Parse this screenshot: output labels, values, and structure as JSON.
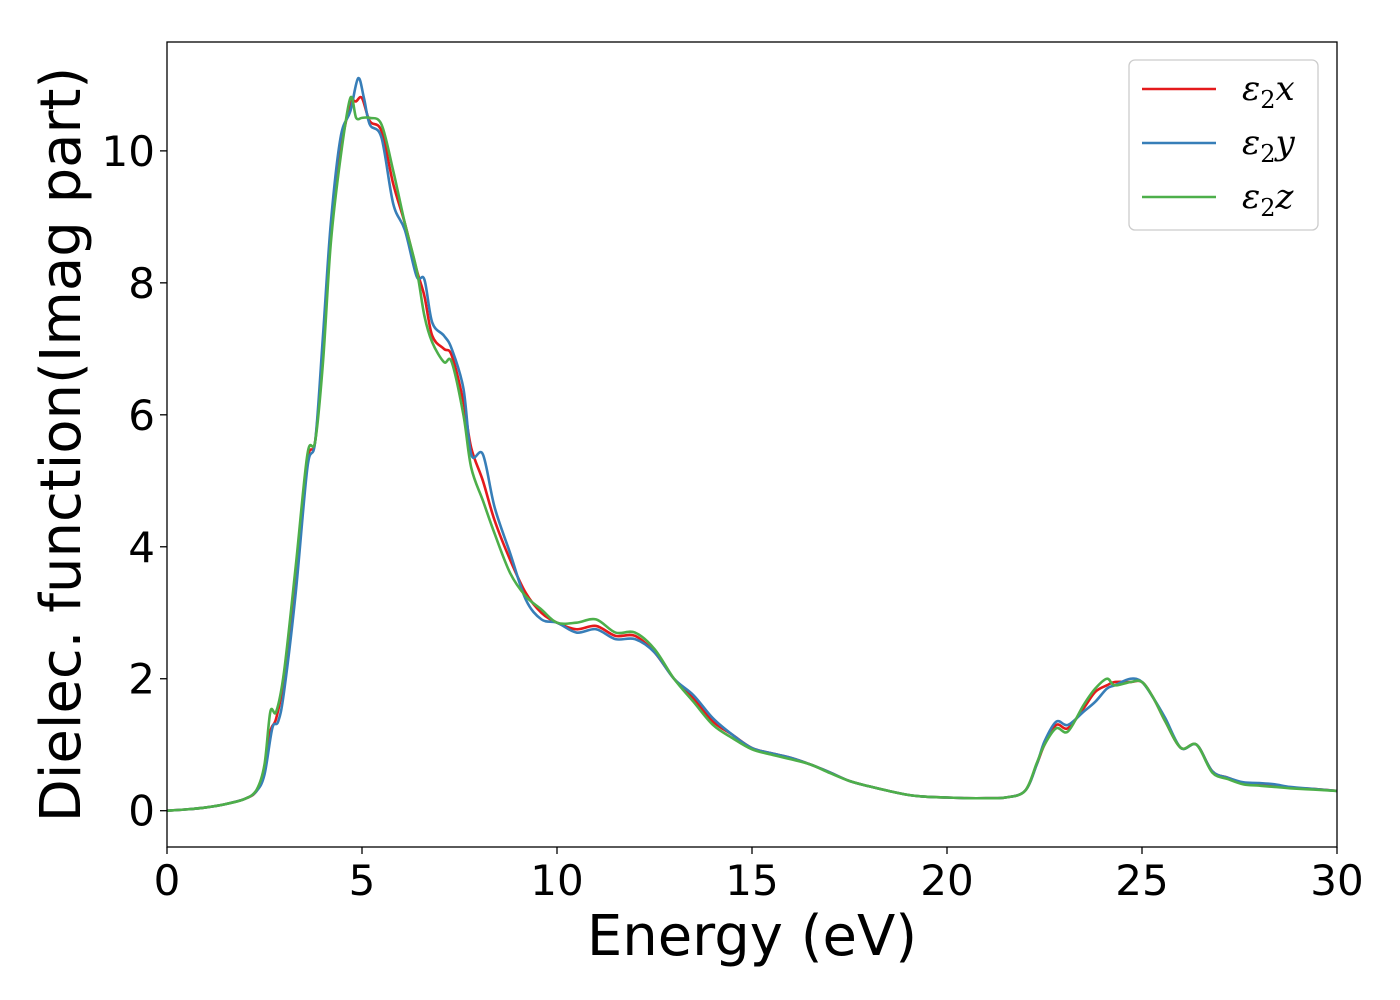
{
  "chart_data": {
    "type": "line",
    "title": "",
    "xlabel": "Energy (eV)",
    "ylabel": "Dielec. function(Imag part)",
    "xlim": [
      0,
      30
    ],
    "ylim": [
      -0.55,
      11.65
    ],
    "xticks": [
      0,
      5,
      10,
      15,
      20,
      25,
      30
    ],
    "yticks": [
      0,
      2,
      4,
      6,
      8,
      10
    ],
    "grid": false,
    "legend_position": "top-right",
    "series": [
      {
        "name": "ε2x",
        "legend": {
          "base": "ε",
          "sub": "2",
          "suffix": "x"
        },
        "color": "#e41a1c",
        "points": [
          [
            0,
            0.0
          ],
          [
            0.5,
            0.02
          ],
          [
            1,
            0.05
          ],
          [
            1.5,
            0.1
          ],
          [
            2,
            0.18
          ],
          [
            2.3,
            0.3
          ],
          [
            2.5,
            0.6
          ],
          [
            2.65,
            1.2
          ],
          [
            2.8,
            1.4
          ],
          [
            3,
            2.0
          ],
          [
            3.3,
            3.5
          ],
          [
            3.6,
            5.3
          ],
          [
            3.8,
            5.6
          ],
          [
            4.0,
            7.0
          ],
          [
            4.2,
            8.8
          ],
          [
            4.45,
            10.0
          ],
          [
            4.7,
            10.7
          ],
          [
            4.85,
            10.75
          ],
          [
            5.0,
            10.8
          ],
          [
            5.2,
            10.45
          ],
          [
            5.5,
            10.3
          ],
          [
            5.8,
            9.5
          ],
          [
            6.1,
            8.9
          ],
          [
            6.4,
            8.2
          ],
          [
            6.6,
            7.8
          ],
          [
            6.8,
            7.2
          ],
          [
            7.1,
            7.0
          ],
          [
            7.3,
            6.9
          ],
          [
            7.6,
            6.2
          ],
          [
            7.8,
            5.5
          ],
          [
            8.1,
            5.0
          ],
          [
            8.4,
            4.4
          ],
          [
            8.8,
            3.8
          ],
          [
            9.2,
            3.3
          ],
          [
            9.6,
            3.0
          ],
          [
            10.0,
            2.85
          ],
          [
            10.5,
            2.75
          ],
          [
            11.0,
            2.8
          ],
          [
            11.5,
            2.65
          ],
          [
            12.0,
            2.65
          ],
          [
            12.5,
            2.4
          ],
          [
            13.0,
            2.0
          ],
          [
            13.5,
            1.7
          ],
          [
            14.0,
            1.35
          ],
          [
            14.5,
            1.15
          ],
          [
            15.0,
            0.95
          ],
          [
            15.5,
            0.87
          ],
          [
            16.0,
            0.8
          ],
          [
            16.5,
            0.7
          ],
          [
            17.0,
            0.58
          ],
          [
            17.5,
            0.45
          ],
          [
            18.0,
            0.37
          ],
          [
            18.5,
            0.3
          ],
          [
            19.0,
            0.24
          ],
          [
            19.5,
            0.21
          ],
          [
            20.0,
            0.2
          ],
          [
            20.5,
            0.19
          ],
          [
            21.0,
            0.19
          ],
          [
            21.5,
            0.2
          ],
          [
            22.0,
            0.3
          ],
          [
            22.3,
            0.7
          ],
          [
            22.5,
            1.0
          ],
          [
            22.8,
            1.3
          ],
          [
            23.1,
            1.25
          ],
          [
            23.5,
            1.55
          ],
          [
            23.8,
            1.8
          ],
          [
            24.1,
            1.9
          ],
          [
            24.3,
            1.95
          ],
          [
            24.7,
            1.95
          ],
          [
            25.0,
            1.95
          ],
          [
            25.3,
            1.7
          ],
          [
            25.6,
            1.35
          ],
          [
            26.0,
            0.95
          ],
          [
            26.4,
            1.0
          ],
          [
            26.8,
            0.6
          ],
          [
            27.2,
            0.5
          ],
          [
            27.6,
            0.42
          ],
          [
            28.0,
            0.4
          ],
          [
            28.4,
            0.38
          ],
          [
            28.8,
            0.35
          ],
          [
            29.4,
            0.33
          ],
          [
            30.0,
            0.3
          ]
        ]
      },
      {
        "name": "ε2y",
        "legend": {
          "base": "ε",
          "sub": "2",
          "suffix": "y"
        },
        "color": "#377eb8",
        "points": [
          [
            0,
            0.0
          ],
          [
            0.5,
            0.02
          ],
          [
            1,
            0.05
          ],
          [
            1.5,
            0.1
          ],
          [
            2,
            0.18
          ],
          [
            2.3,
            0.3
          ],
          [
            2.5,
            0.55
          ],
          [
            2.7,
            1.25
          ],
          [
            2.85,
            1.35
          ],
          [
            3,
            1.8
          ],
          [
            3.3,
            3.3
          ],
          [
            3.6,
            5.2
          ],
          [
            3.8,
            5.6
          ],
          [
            4.0,
            7.2
          ],
          [
            4.2,
            8.9
          ],
          [
            4.45,
            10.2
          ],
          [
            4.7,
            10.6
          ],
          [
            4.9,
            11.1
          ],
          [
            5.05,
            10.8
          ],
          [
            5.2,
            10.4
          ],
          [
            5.5,
            10.2
          ],
          [
            5.8,
            9.2
          ],
          [
            6.1,
            8.8
          ],
          [
            6.4,
            8.1
          ],
          [
            6.6,
            8.05
          ],
          [
            6.8,
            7.4
          ],
          [
            7.1,
            7.2
          ],
          [
            7.3,
            7.0
          ],
          [
            7.6,
            6.4
          ],
          [
            7.8,
            5.4
          ],
          [
            8.1,
            5.4
          ],
          [
            8.4,
            4.6
          ],
          [
            8.8,
            3.9
          ],
          [
            9.2,
            3.2
          ],
          [
            9.6,
            2.9
          ],
          [
            10.0,
            2.85
          ],
          [
            10.5,
            2.7
          ],
          [
            11.0,
            2.75
          ],
          [
            11.5,
            2.6
          ],
          [
            12.0,
            2.6
          ],
          [
            12.5,
            2.4
          ],
          [
            13.0,
            2.0
          ],
          [
            13.5,
            1.75
          ],
          [
            14.0,
            1.4
          ],
          [
            14.5,
            1.15
          ],
          [
            15.0,
            0.95
          ],
          [
            15.5,
            0.87
          ],
          [
            16.0,
            0.8
          ],
          [
            16.5,
            0.7
          ],
          [
            17.0,
            0.58
          ],
          [
            17.5,
            0.45
          ],
          [
            18.0,
            0.37
          ],
          [
            18.5,
            0.3
          ],
          [
            19.0,
            0.24
          ],
          [
            19.5,
            0.21
          ],
          [
            20.0,
            0.2
          ],
          [
            20.5,
            0.19
          ],
          [
            21.0,
            0.19
          ],
          [
            21.5,
            0.2
          ],
          [
            22.0,
            0.3
          ],
          [
            22.3,
            0.7
          ],
          [
            22.5,
            1.05
          ],
          [
            22.8,
            1.35
          ],
          [
            23.1,
            1.3
          ],
          [
            23.5,
            1.5
          ],
          [
            23.8,
            1.65
          ],
          [
            24.1,
            1.85
          ],
          [
            24.3,
            1.9
          ],
          [
            24.7,
            2.0
          ],
          [
            25.0,
            1.95
          ],
          [
            25.3,
            1.7
          ],
          [
            25.6,
            1.4
          ],
          [
            26.0,
            0.95
          ],
          [
            26.4,
            1.0
          ],
          [
            26.8,
            0.6
          ],
          [
            27.2,
            0.5
          ],
          [
            27.6,
            0.43
          ],
          [
            28.0,
            0.42
          ],
          [
            28.4,
            0.4
          ],
          [
            28.8,
            0.36
          ],
          [
            29.4,
            0.33
          ],
          [
            30.0,
            0.3
          ]
        ]
      },
      {
        "name": "ε2z",
        "legend": {
          "base": "ε",
          "sub": "2",
          "suffix": "z"
        },
        "color": "#4daf4a",
        "points": [
          [
            0,
            0.0
          ],
          [
            0.5,
            0.02
          ],
          [
            1,
            0.05
          ],
          [
            1.5,
            0.1
          ],
          [
            2,
            0.18
          ],
          [
            2.3,
            0.32
          ],
          [
            2.5,
            0.7
          ],
          [
            2.65,
            1.5
          ],
          [
            2.8,
            1.5
          ],
          [
            3,
            2.1
          ],
          [
            3.3,
            3.7
          ],
          [
            3.6,
            5.4
          ],
          [
            3.8,
            5.6
          ],
          [
            4.0,
            6.8
          ],
          [
            4.2,
            8.6
          ],
          [
            4.45,
            9.9
          ],
          [
            4.7,
            10.8
          ],
          [
            4.85,
            10.5
          ],
          [
            5.0,
            10.5
          ],
          [
            5.2,
            10.5
          ],
          [
            5.5,
            10.4
          ],
          [
            5.8,
            9.7
          ],
          [
            6.1,
            8.9
          ],
          [
            6.4,
            8.2
          ],
          [
            6.6,
            7.5
          ],
          [
            6.8,
            7.1
          ],
          [
            7.1,
            6.8
          ],
          [
            7.3,
            6.8
          ],
          [
            7.6,
            6.0
          ],
          [
            7.8,
            5.2
          ],
          [
            8.1,
            4.7
          ],
          [
            8.4,
            4.2
          ],
          [
            8.8,
            3.6
          ],
          [
            9.2,
            3.25
          ],
          [
            9.6,
            3.05
          ],
          [
            10.0,
            2.85
          ],
          [
            10.5,
            2.85
          ],
          [
            11.0,
            2.9
          ],
          [
            11.5,
            2.7
          ],
          [
            12.0,
            2.7
          ],
          [
            12.5,
            2.45
          ],
          [
            13.0,
            2.0
          ],
          [
            13.5,
            1.65
          ],
          [
            14.0,
            1.3
          ],
          [
            14.5,
            1.1
          ],
          [
            15.0,
            0.93
          ],
          [
            15.5,
            0.85
          ],
          [
            16.0,
            0.78
          ],
          [
            16.5,
            0.7
          ],
          [
            17.0,
            0.57
          ],
          [
            17.5,
            0.45
          ],
          [
            18.0,
            0.37
          ],
          [
            18.5,
            0.3
          ],
          [
            19.0,
            0.24
          ],
          [
            19.5,
            0.21
          ],
          [
            20.0,
            0.2
          ],
          [
            20.5,
            0.19
          ],
          [
            21.0,
            0.19
          ],
          [
            21.5,
            0.2
          ],
          [
            22.0,
            0.3
          ],
          [
            22.3,
            0.72
          ],
          [
            22.5,
            1.0
          ],
          [
            22.8,
            1.25
          ],
          [
            23.1,
            1.2
          ],
          [
            23.5,
            1.6
          ],
          [
            23.8,
            1.85
          ],
          [
            24.1,
            2.0
          ],
          [
            24.3,
            1.9
          ],
          [
            24.7,
            1.95
          ],
          [
            25.0,
            1.95
          ],
          [
            25.3,
            1.7
          ],
          [
            25.6,
            1.35
          ],
          [
            26.0,
            0.95
          ],
          [
            26.4,
            1.0
          ],
          [
            26.8,
            0.58
          ],
          [
            27.2,
            0.48
          ],
          [
            27.6,
            0.4
          ],
          [
            28.0,
            0.38
          ],
          [
            28.4,
            0.36
          ],
          [
            28.8,
            0.34
          ],
          [
            29.4,
            0.32
          ],
          [
            30.0,
            0.3
          ]
        ]
      }
    ]
  }
}
